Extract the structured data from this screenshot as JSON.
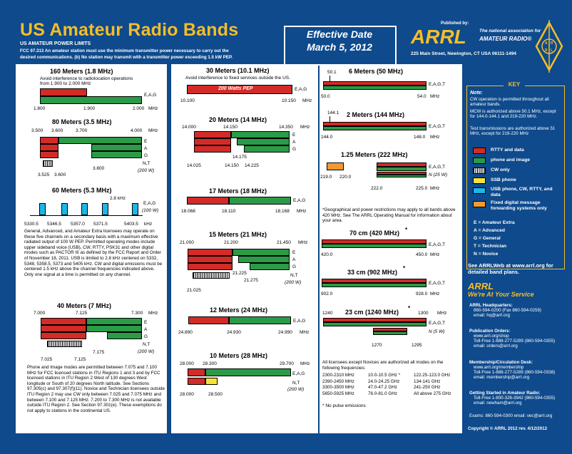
{
  "header": {
    "title": "US Amateur Radio Bands",
    "power_heading": "US AMATEUR POWER LIMITS",
    "power_line1": "FCC 97.313   An amateur station must use the minimum transmitter power necessary to carry out the",
    "power_line2": "desired communications.  (b) No station may transmit with a transmitter power exceeding 1.5 kW PEP.",
    "effective_label": "Effective Date",
    "effective_date": "March 5, 2012",
    "published_by": "Published by:",
    "brand": "ARRL",
    "tagline1": "The national association for",
    "tagline2": "AMATEUR RADIO®",
    "address": "225 Main Street, Newington, CT  USA  06111-1494"
  },
  "colors": {
    "rtty_data": "#d32b27",
    "phone_image": "#2a9b47",
    "cw_only": "#000000",
    "ssb_phone": "#f7e23a",
    "usb_phone": "#1fb5e8",
    "fixed_digital": "#f29a2e",
    "background": "#0e4a8c",
    "accent": "#f6bd28"
  },
  "bands": {
    "m160": {
      "title": "160 Meters (1.8 MHz)",
      "note1": "Avoid interference to radiolocation operations",
      "note2": "from 1.900 to 2.000 MHz",
      "classes": "E,A,G",
      "f1": "1.800",
      "f2": "1.900",
      "f3": "2.000",
      "unit": "MHz"
    },
    "m80": {
      "title": "80 Meters (3.5 MHz)",
      "f1": "3.500",
      "f2": "3.600",
      "f3": "3.700",
      "f4": "4.000",
      "unit": "MHz",
      "e": "E",
      "a": "A",
      "g": "G",
      "nt": "N,T",
      "power": "(200 W)",
      "f5": "3.800",
      "f6": "3.525",
      "f7": "3.600"
    },
    "m60": {
      "title": "60 Meters (5.3 MHz)",
      "bw": "2.8 kHz",
      "classes": "E,A,G",
      "power": "(100 W)",
      "f1": "5330.5",
      "f2": "5346.5",
      "f3": "5357.0",
      "f4": "5371.5",
      "f5": "5403.5",
      "unit": "kHz",
      "note": "General, Advanced, and Amateur Extra licensees may operate on these five channels on a secondary basis with a maximum effective radiated output of 100 W PEP. Permitted operating modes include upper sideband voice (USB), CW, RTTY, PSK31 and other digital modes such as PACTOR III as defined by the FCC Report and Order of November 18, 2011. USB is limited to 2.8 kHz centered on 5332, 5348, 5358.5, 5373 and 5405 kHz. CW and digital emissions must be centered 1.5 kHz above the channel frequencies indicated above. Only one signal at a time is permitted on any channel."
    },
    "m40": {
      "title": "40 Meters (7 MHz)",
      "f1": "7.000",
      "f2": "7.125",
      "f3": "7.300",
      "unit": "MHz",
      "e": "E",
      "a": "A",
      "g": "G",
      "nt": "N,T",
      "power": "(200 W)",
      "f4": "7.175",
      "f5": "7.025",
      "f6": "7.125",
      "note": "Phone and Image modes are permitted between 7.075 and 7.100 MHz for FCC licensed stations in ITU Regions 1 and 3 and by FCC licensed stations in ITU Region 2 West of 130 degrees West longitude or South of 20 degrees North latitude. See Sections 97.305(c) and 97.307(f)(11). Novice and Technician licensees outside ITU Region 2 may use CW only between 7.025 and 7.075 MHz and between 7.100 and 7.125 MHz. 7.200 to 7.300 MHz is not available outside ITU Region 2. See Section 97.301(e). These exemptions do not apply to stations in the continental US."
    },
    "m30": {
      "title": "30 Meters (10.1 MHz)",
      "note": "Avoid interference to fixed services outside the US.",
      "bar_label": "200 Watts PEP",
      "classes": "E,A,G",
      "f1": "10.100",
      "f2": "10.150",
      "unit": "MHz"
    },
    "m20": {
      "title": "20 Meters (14 MHz)",
      "f1": "14.000",
      "f2": "14.150",
      "f3": "14.350",
      "unit": "MHz",
      "e": "E",
      "a": "A",
      "g": "G",
      "f4": "14.175",
      "f5": "14.025",
      "f6": "14.150",
      "f7": "14.225"
    },
    "m17": {
      "title": "17 Meters (18 MHz)",
      "classes": "E,A,G",
      "f1": "18.068",
      "f2": "18.110",
      "f3": "18.168",
      "unit": "MHz"
    },
    "m15": {
      "title": "15 Meters (21 MHz)",
      "f1": "21.000",
      "f2": "21.200",
      "f3": "21.450",
      "unit": "MHz",
      "e": "E",
      "a": "A",
      "g": "G",
      "nt": "N,T",
      "power": "(200 W)",
      "f4": "21.225",
      "f5": "21.275",
      "f6": "21.025"
    },
    "m12": {
      "title": "12 Meters (24 MHz)",
      "classes": "E,A,G",
      "f1": "24.890",
      "f2": "24.930",
      "f3": "24.990",
      "unit": "MHz"
    },
    "m10": {
      "title": "10 Meters (28 MHz)",
      "f1": "28.000",
      "f2": "28.300",
      "f3": "29.700",
      "unit": "MHz",
      "classes": "E,A,G",
      "nt": "N,T",
      "power": "(200 W)",
      "f4": "28.000",
      "f5": "28.500"
    },
    "m6": {
      "title": "6 Meters (50 MHz)",
      "f1": "50.1",
      "f2": "50.0",
      "f3": "54.0",
      "unit": "MHz",
      "classes": "E,A,G,T"
    },
    "m2": {
      "title": "2 Meters (144 MHz)",
      "f1": "144.1",
      "f2": "144.0",
      "f3": "148.0",
      "unit": "MHz",
      "classes": "E,A,G,T"
    },
    "m125": {
      "title": "1.25 Meters (222 MHz)",
      "classes": "E,A,G,T",
      "novice": "N (25 W)",
      "f1": "219.0",
      "f2": "220.0",
      "f3": "222.0",
      "f4": "225.0",
      "unit": "MHz"
    },
    "geo_note": "*Geographical and power restrictions may apply to all bands above 420 MHz. See The ARRL Operating Manual for information about your area.",
    "cm70": {
      "title": "70 cm (420 MHz)",
      "star": "*",
      "classes": "E,A,G,T",
      "f1": "420.0",
      "f2": "450.0",
      "unit": "MHz"
    },
    "cm33": {
      "title": "33 cm (902 MHz)",
      "star": "*",
      "classes": "E,A,G,T",
      "f1": "902.0",
      "f2": "928.0",
      "unit": "MHz"
    },
    "cm23": {
      "title": "23 cm (1240 MHz)",
      "star": "*",
      "f1": "1240",
      "f2": "1300",
      "unit": "MHz",
      "classes": "E,A,G,T",
      "novice": "N (5 W)",
      "f3": "1270",
      "f4": "1295"
    },
    "above": {
      "intro": "All licensees except Novices are authorized all modes on the following frequencies:",
      "rows": [
        [
          "2300-2310 MHz",
          "10.0-10.5 GHz *",
          "122.25-123.0 GHz"
        ],
        [
          "2390-2450 MHz",
          "24.0-24.25 GHz",
          "134-141 GHz"
        ],
        [
          "3300-3500 MHz",
          "47.0-47.2 GHz",
          "241-250 GHz"
        ],
        [
          "5650-5925 MHz",
          "76.0-81.0 GHz",
          "All above 275 GHz"
        ]
      ],
      "footnote": "* No pulse emissions"
    }
  },
  "key": {
    "label": "KEY",
    "note_head": "Note:",
    "note1": "CW operation is permitted throughout all amateur bands.",
    "note2": "MCW is authorized above 50.1 MHz, except for 144.0-144.1 and 219-220 MHz.",
    "note3": "Test transmissions are authorized above 51 MHz, except for 219-220 MHz",
    "items": [
      {
        "label": "RTTY and data"
      },
      {
        "label": "phone and image"
      },
      {
        "label": "CW only"
      },
      {
        "label": "SSB phone"
      },
      {
        "label": "USB phone, CW, RTTY, and data"
      },
      {
        "label": "Fixed digital message forwarding systems only"
      }
    ],
    "classes": [
      "E = Amateur Extra",
      "A = Advanced",
      "G = General",
      "T = Technician",
      "N = Novice"
    ]
  },
  "sidebar": {
    "arrlweb": "See ARRLWeb at www.arrl.org for detailed band plans.",
    "brand": "ARRL",
    "service": "We're At Your Service",
    "hq_head": "ARRL Headquarters:",
    "hq1": "860-594-0200  (Fax 860-594-0259)",
    "hq2": "email:  hq@arrl.org",
    "po_head": "Publication Orders:",
    "po1": "www.arrl.org/shop",
    "po2": "Toll-Free 1-888-277-5289 (860-594-0355)",
    "po3": "email:  orders@arrl.org",
    "mem_head": "Membership/Circulation Desk:",
    "mem1": "www.arrl.org/membership",
    "mem2": "Toll-Free 1-888-277-5289 (860-594-0338)",
    "mem3": "email:  membership@arrl.org",
    "gs_head": "Getting Started in Amateur Radio:",
    "gs1": "Toll-Free 1-800-326-3942 (860-594-0355)",
    "gs2": "email:  newham@arrl.org",
    "exams": "Exams:  860-594-0300   email: vec@arrl.org",
    "copyright": "Copyright © ARRL 2012     rev. 4/12/2012"
  }
}
